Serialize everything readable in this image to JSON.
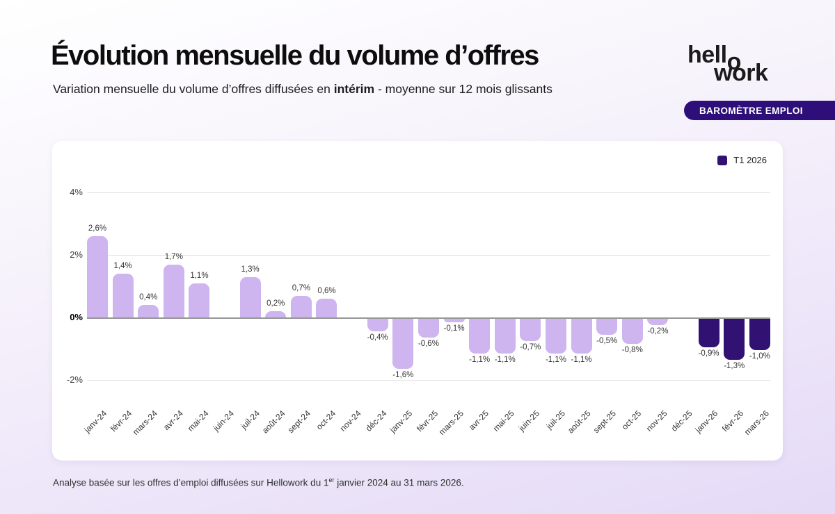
{
  "page": {
    "title": "Évolution mensuelle du volume d’offres",
    "subtitle_prefix": "Variation mensuelle du volume d’offres diffusées en ",
    "subtitle_bold": "intérim",
    "subtitle_suffix": " - moyenne sur 12 mois glissants",
    "footer_prefix": "Analyse basée sur les offres d’emploi diffusées sur Hellowork du 1",
    "footer_sup": "er",
    "footer_suffix": " janvier 2024 au 31 mars 2026."
  },
  "brand": {
    "logo_part1": "hell",
    "logo_o": "o",
    "logo_part2": "work",
    "badge_label": "BAROMÈTRE EMPLOI"
  },
  "legend": {
    "label": "T1 2026"
  },
  "colors": {
    "bar_light": "#CFB5F0",
    "bar_dark": "#311272",
    "badge_bg": "#2E0F7A"
  },
  "chart_data": {
    "type": "bar",
    "title": "Évolution mensuelle du volume d’offres",
    "subtitle": "Variation mensuelle du volume d’offres diffusées en intérim - moyenne sur 12 mois glissants",
    "xlabel": "",
    "ylabel": "",
    "ylim": [
      -2,
      4
    ],
    "grid": true,
    "legend_position": "top-right",
    "unit": "%",
    "yticks": [
      {
        "label": "4%",
        "value": 4,
        "bold": false
      },
      {
        "label": "2%",
        "value": 2,
        "bold": false
      },
      {
        "label": "0%",
        "value": 0,
        "bold": true
      },
      {
        "label": "-2%",
        "value": -2,
        "bold": false
      }
    ],
    "highlight_series_name": "T1 2026",
    "points": [
      {
        "month": "janv-24",
        "value": 2.6,
        "label": "2,6%",
        "dark": false
      },
      {
        "month": "févr-24",
        "value": 1.4,
        "label": "1,4%",
        "dark": false
      },
      {
        "month": "mars-24",
        "value": 0.4,
        "label": "0,4%",
        "dark": false
      },
      {
        "month": "avr-24",
        "value": 1.7,
        "label": "1,7%",
        "dark": false
      },
      {
        "month": "mai-24",
        "value": 1.1,
        "label": "1,1%",
        "dark": false
      },
      {
        "month": "juin-24",
        "value": 0,
        "label": "",
        "dark": false
      },
      {
        "month": "juil-24",
        "value": 1.3,
        "label": "1,3%",
        "dark": false
      },
      {
        "month": "août-24",
        "value": 0.2,
        "label": "0,2%",
        "dark": false
      },
      {
        "month": "sept-24",
        "value": 0.7,
        "label": "0,7%",
        "dark": false
      },
      {
        "month": "oct-24",
        "value": 0.6,
        "label": "0,6%",
        "dark": false
      },
      {
        "month": "nov-24",
        "value": 0,
        "label": "",
        "dark": false
      },
      {
        "month": "déc-24",
        "value": -0.4,
        "label": "-0,4%",
        "dark": false
      },
      {
        "month": "janv-25",
        "value": -1.6,
        "label": "-1,6%",
        "dark": false
      },
      {
        "month": "févr-25",
        "value": -0.6,
        "label": "-0,6%",
        "dark": false
      },
      {
        "month": "mars-25",
        "value": -0.1,
        "label": "-0,1%",
        "dark": false
      },
      {
        "month": "avr-25",
        "value": -1.1,
        "label": "-1,1%",
        "dark": false
      },
      {
        "month": "mai-25",
        "value": -1.1,
        "label": "-1,1%",
        "dark": false
      },
      {
        "month": "juin-25",
        "value": -0.7,
        "label": "-0,7%",
        "dark": false
      },
      {
        "month": "juil-25",
        "value": -1.1,
        "label": "-1,1%",
        "dark": false
      },
      {
        "month": "août-25",
        "value": -1.1,
        "label": "-1,1%",
        "dark": false
      },
      {
        "month": "sept-25",
        "value": -0.5,
        "label": "-0,5%",
        "dark": false
      },
      {
        "month": "oct-25",
        "value": -0.8,
        "label": "-0,8%",
        "dark": false
      },
      {
        "month": "nov-25",
        "value": -0.2,
        "label": "-0,2%",
        "dark": false
      },
      {
        "month": "déc-25",
        "value": 0,
        "label": "",
        "dark": false
      },
      {
        "month": "janv-26",
        "value": -0.9,
        "label": "-0,9%",
        "dark": true
      },
      {
        "month": "févr-26",
        "value": -1.3,
        "label": "-1,3%",
        "dark": true
      },
      {
        "month": "mars-26",
        "value": -1.0,
        "label": "-1,0%",
        "dark": true
      }
    ]
  }
}
